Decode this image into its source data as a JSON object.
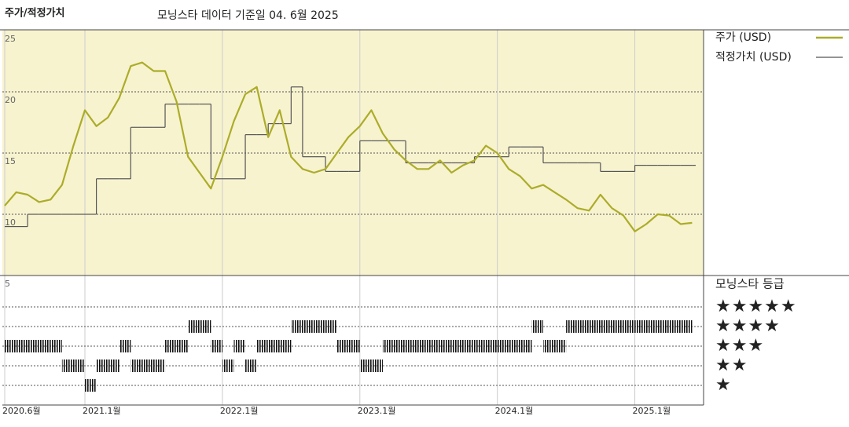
{
  "chart_data": {
    "type": "line",
    "title": "주가/적정가치",
    "subtitle": "모닝스타 데이터 기준일 04. 6월 2025",
    "x": [
      "2020-06",
      "2020-07",
      "2020-08",
      "2020-09",
      "2020-10",
      "2020-11",
      "2020-12",
      "2021-01",
      "2021-02",
      "2021-03",
      "2021-04",
      "2021-05",
      "2021-06",
      "2021-07",
      "2021-08",
      "2021-09",
      "2021-10",
      "2021-11",
      "2021-12",
      "2022-01",
      "2022-02",
      "2022-03",
      "2022-04",
      "2022-05",
      "2022-06",
      "2022-07",
      "2022-08",
      "2022-09",
      "2022-10",
      "2022-11",
      "2022-12",
      "2023-01",
      "2023-02",
      "2023-03",
      "2023-04",
      "2023-05",
      "2023-06",
      "2023-07",
      "2023-08",
      "2023-09",
      "2023-10",
      "2023-11",
      "2023-12",
      "2024-01",
      "2024-02",
      "2024-03",
      "2024-04",
      "2024-05",
      "2024-06",
      "2024-07",
      "2024-08",
      "2024-09",
      "2024-10",
      "2024-11",
      "2024-12",
      "2025-01",
      "2025-02",
      "2025-03",
      "2025-04",
      "2025-05",
      "2025-06"
    ],
    "series": [
      {
        "name": "주가 (USD)",
        "color": "#acac2a",
        "values": [
          10.7,
          11.8,
          11.6,
          11.0,
          11.2,
          12.4,
          15.6,
          18.5,
          17.2,
          17.9,
          19.5,
          22.1,
          22.4,
          21.7,
          21.7,
          19.2,
          14.7,
          13.4,
          12.1,
          14.7,
          17.6,
          19.8,
          20.4,
          16.3,
          18.5,
          14.7,
          13.7,
          13.4,
          13.7,
          15.0,
          16.3,
          17.2,
          18.5,
          16.6,
          15.3,
          14.4,
          13.7,
          13.7,
          14.4,
          13.4,
          14.0,
          14.4,
          15.6,
          15.0,
          13.7,
          13.1,
          12.1,
          12.4,
          11.8,
          11.2,
          10.5,
          10.3,
          11.6,
          10.5,
          9.9,
          8.6,
          9.2,
          10.0,
          9.9,
          9.2,
          9.3
        ]
      },
      {
        "name": "적정가치 (USD)",
        "color": "#555555",
        "values": [
          9.0,
          9.0,
          10.0,
          10.0,
          10.0,
          10.0,
          10.0,
          10.0,
          12.9,
          12.9,
          12.9,
          17.1,
          17.1,
          17.1,
          19.0,
          19.0,
          19.0,
          19.0,
          12.9,
          12.9,
          12.9,
          16.5,
          16.5,
          17.4,
          17.4,
          20.4,
          14.7,
          14.7,
          13.5,
          13.5,
          13.5,
          16.0,
          16.0,
          16.0,
          16.0,
          14.2,
          14.2,
          14.2,
          14.2,
          14.2,
          14.2,
          14.7,
          14.7,
          14.7,
          15.5,
          15.5,
          15.5,
          14.2,
          14.2,
          14.2,
          14.2,
          14.2,
          13.5,
          13.5,
          13.5,
          14.0,
          14.0,
          14.0,
          14.0,
          14.0,
          14.0
        ]
      }
    ],
    "xlim": [
      "2020-06",
      "2025-07"
    ],
    "xticks": [
      {
        "value": "2020-06",
        "label": "2020.6월"
      },
      {
        "value": "2021-01",
        "label": "2021.1월"
      },
      {
        "value": "2022-01",
        "label": "2022.1월"
      },
      {
        "value": "2023-01",
        "label": "2023.1월"
      },
      {
        "value": "2024-01",
        "label": "2024.1월"
      },
      {
        "value": "2025-01",
        "label": "2025.1월"
      }
    ],
    "ylim": [
      5,
      25
    ],
    "yticks": [
      5,
      10,
      15,
      20,
      25
    ],
    "grid": true,
    "rating_title": "모닝스타 등급",
    "rating_legend": [
      {
        "label": "★★★★★",
        "stars": 5
      },
      {
        "label": "★★★★",
        "stars": 4
      },
      {
        "label": "★★★",
        "stars": 3
      },
      {
        "label": "★★",
        "stars": 2
      },
      {
        "label": "★",
        "stars": 1
      }
    ],
    "ratings": [
      {
        "stars": 3,
        "start": "2020-06",
        "end": "2020-11"
      },
      {
        "stars": 2,
        "start": "2020-11",
        "end": "2021-01"
      },
      {
        "stars": 1,
        "start": "2021-01",
        "end": "2021-02"
      },
      {
        "stars": 2,
        "start": "2021-02",
        "end": "2021-04"
      },
      {
        "stars": 3,
        "start": "2021-04",
        "end": "2021-05"
      },
      {
        "stars": 2,
        "start": "2021-05",
        "end": "2021-08"
      },
      {
        "stars": 3,
        "start": "2021-08",
        "end": "2021-10"
      },
      {
        "stars": 4,
        "start": "2021-10",
        "end": "2021-12"
      },
      {
        "stars": 3,
        "start": "2021-12",
        "end": "2022-01"
      },
      {
        "stars": 2,
        "start": "2022-01",
        "end": "2022-02"
      },
      {
        "stars": 3,
        "start": "2022-02",
        "end": "2022-03"
      },
      {
        "stars": 2,
        "start": "2022-03",
        "end": "2022-04"
      },
      {
        "stars": 3,
        "start": "2022-04",
        "end": "2022-07"
      },
      {
        "stars": 4,
        "start": "2022-07",
        "end": "2022-11"
      },
      {
        "stars": 3,
        "start": "2022-11",
        "end": "2023-01"
      },
      {
        "stars": 2,
        "start": "2023-01",
        "end": "2023-03"
      },
      {
        "stars": 3,
        "start": "2023-03",
        "end": "2024-04"
      },
      {
        "stars": 4,
        "start": "2024-04",
        "end": "2024-05"
      },
      {
        "stars": 3,
        "start": "2024-05",
        "end": "2024-07"
      },
      {
        "stars": 4,
        "start": "2024-07",
        "end": "2025-06"
      }
    ]
  }
}
